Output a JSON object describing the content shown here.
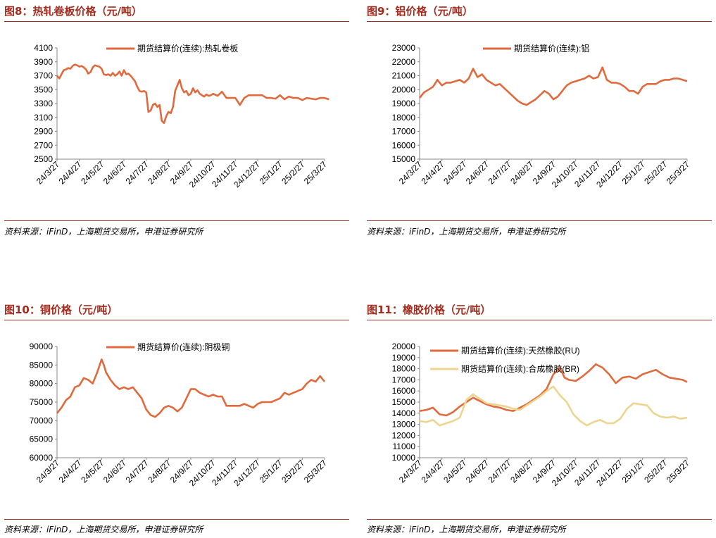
{
  "colors": {
    "title": "#a32b1d",
    "rule": "#a32b1d",
    "series_primary": "#e06a3d",
    "series_secondary": "#ecd58f",
    "axis": "#888888"
  },
  "chart_data": [
    {
      "panel_title": "图8：热轧卷板价格（元/吨）",
      "source": "资料来源：iFinD，上海期货交易所，申港证券研究所",
      "type": "line",
      "x_ticks": [
        "24/3/27",
        "24/4/27",
        "24/5/27",
        "24/6/27",
        "24/7/27",
        "24/8/27",
        "24/9/27",
        "24/10/27",
        "24/11/27",
        "24/12/27",
        "25/1/27",
        "25/2/27",
        "25/3/27"
      ],
      "ylim": [
        2500,
        4100
      ],
      "y_ticks": [
        4100,
        3900,
        3700,
        3500,
        3300,
        3100,
        2900,
        2700,
        2500
      ],
      "legend_position": "top-center",
      "series": [
        {
          "name": "期货结算价(连续):热轧卷板",
          "color": "#e06a3d",
          "x": [
            0,
            0.1,
            0.2,
            0.3,
            0.4,
            0.5,
            0.6,
            0.7,
            0.8,
            0.9,
            1,
            1.1,
            1.2,
            1.3,
            1.4,
            1.5,
            1.6,
            1.7,
            1.8,
            1.9,
            2,
            2.1,
            2.2,
            2.3,
            2.4,
            2.5,
            2.6,
            2.7,
            2.8,
            2.9,
            3,
            3.1,
            3.2,
            3.3,
            3.4,
            3.5,
            3.6,
            3.7,
            3.8,
            3.9,
            4,
            4.1,
            4.2,
            4.3,
            4.4,
            4.5,
            4.6,
            4.7,
            4.8,
            4.9,
            5,
            5.1,
            5.2,
            5.3,
            5.4,
            5.5,
            5.6,
            5.7,
            5.8,
            5.9,
            6,
            6.1,
            6.2,
            6.3,
            6.4,
            6.5,
            6.6,
            6.7,
            6.8,
            6.9,
            7,
            7.2,
            7.4,
            7.6,
            7.8,
            8,
            8.2,
            8.4,
            8.6,
            8.8,
            9,
            9.2,
            9.4,
            9.6,
            9.8,
            10,
            10.2,
            10.4,
            10.6,
            10.8,
            11,
            11.2,
            11.4,
            11.6,
            11.8,
            12,
            12.2
          ],
          "y": [
            3700,
            3660,
            3720,
            3780,
            3790,
            3810,
            3800,
            3840,
            3860,
            3850,
            3830,
            3840,
            3820,
            3790,
            3730,
            3750,
            3820,
            3850,
            3840,
            3830,
            3800,
            3720,
            3710,
            3720,
            3700,
            3740,
            3700,
            3720,
            3760,
            3700,
            3780,
            3720,
            3730,
            3700,
            3660,
            3620,
            3540,
            3480,
            3470,
            3480,
            3460,
            3180,
            3200,
            3280,
            3300,
            3250,
            3280,
            3050,
            3020,
            3120,
            3180,
            3160,
            3250,
            3480,
            3560,
            3640,
            3520,
            3460,
            3480,
            3420,
            3440,
            3520,
            3460,
            3490,
            3440,
            3420,
            3400,
            3430,
            3410,
            3420,
            3440,
            3410,
            3470,
            3380,
            3380,
            3380,
            3280,
            3380,
            3420,
            3420,
            3420,
            3420,
            3380,
            3380,
            3370,
            3420,
            3360,
            3400,
            3380,
            3380,
            3350,
            3380,
            3370,
            3360,
            3380,
            3380,
            3360
          ]
        }
      ]
    },
    {
      "panel_title": "图9：铝价格（元/吨）",
      "source": "资料来源：iFinD，上海期货交易所，申港证券研究所",
      "type": "line",
      "x_ticks": [
        "24/3/27",
        "24/4/27",
        "24/5/27",
        "24/6/27",
        "24/7/27",
        "24/8/27",
        "24/9/27",
        "24/10/27",
        "24/11/27",
        "24/12/27",
        "25/1/27",
        "25/2/27",
        "25/3/27"
      ],
      "ylim": [
        15000,
        23000
      ],
      "y_ticks": [
        23000,
        22000,
        21000,
        20000,
        19000,
        18000,
        17000,
        16000,
        15000
      ],
      "legend_position": "top-center",
      "series": [
        {
          "name": "期货结算价(连续):铝",
          "color": "#e06a3d",
          "x": [
            0,
            0.2,
            0.4,
            0.6,
            0.8,
            1,
            1.2,
            1.4,
            1.6,
            1.8,
            2,
            2.2,
            2.4,
            2.6,
            2.8,
            3,
            3.2,
            3.4,
            3.6,
            3.8,
            4,
            4.2,
            4.4,
            4.6,
            4.8,
            5,
            5.2,
            5.4,
            5.6,
            5.8,
            6,
            6.2,
            6.4,
            6.6,
            6.8,
            7,
            7.2,
            7.4,
            7.6,
            7.8,
            8,
            8.2,
            8.4,
            8.6,
            8.8,
            9,
            9.2,
            9.4,
            9.6,
            9.8,
            10,
            10.2,
            10.4,
            10.6,
            10.8,
            11,
            11.2,
            11.4,
            11.6,
            11.8,
            12
          ],
          "y": [
            19400,
            19800,
            20000,
            20200,
            20700,
            20300,
            20500,
            20500,
            20600,
            20700,
            20500,
            20800,
            21500,
            20900,
            21100,
            20700,
            20500,
            20300,
            20400,
            20100,
            19800,
            19500,
            19200,
            19000,
            18900,
            19100,
            19300,
            19600,
            19900,
            19700,
            19300,
            19500,
            19900,
            20300,
            20500,
            20600,
            20700,
            20800,
            21000,
            20800,
            20900,
            21600,
            20700,
            20500,
            20500,
            20400,
            20200,
            19900,
            19900,
            19700,
            20200,
            20400,
            20400,
            20400,
            20600,
            20700,
            20700,
            20800,
            20800,
            20700,
            20600
          ]
        }
      ]
    },
    {
      "panel_title": "图10：铜价格（元/吨）",
      "source": "资料来源：iFinD，上海期货交易所，申港证券研究所",
      "type": "line",
      "x_ticks": [
        "24/3/27",
        "24/4/27",
        "24/5/27",
        "24/6/27",
        "24/7/27",
        "24/8/27",
        "24/9/27",
        "24/10/27",
        "24/11/27",
        "24/12/27",
        "25/1/27",
        "25/2/27",
        "25/3/27"
      ],
      "ylim": [
        60000,
        90000
      ],
      "y_ticks": [
        90000,
        85000,
        80000,
        75000,
        70000,
        65000,
        60000
      ],
      "legend_position": "top-center",
      "series": [
        {
          "name": "期货结算价(连续):阴极铜",
          "color": "#e06a3d",
          "x": [
            0,
            0.2,
            0.4,
            0.6,
            0.8,
            1,
            1.2,
            1.4,
            1.6,
            1.8,
            2,
            2.1,
            2.2,
            2.3,
            2.4,
            2.6,
            2.8,
            3,
            3.2,
            3.4,
            3.6,
            3.8,
            4,
            4.2,
            4.4,
            4.6,
            4.8,
            5,
            5.2,
            5.4,
            5.6,
            5.8,
            6,
            6.2,
            6.4,
            6.6,
            6.8,
            7,
            7.2,
            7.4,
            7.6,
            7.8,
            8,
            8.2,
            8.4,
            8.6,
            8.8,
            9,
            9.2,
            9.4,
            9.6,
            9.8,
            10,
            10.2,
            10.4,
            10.6,
            10.8,
            11,
            11.2,
            11.4,
            11.6,
            11.8,
            12
          ],
          "y": [
            72000,
            73500,
            75500,
            76500,
            79000,
            79500,
            81500,
            81000,
            80000,
            83000,
            86500,
            85000,
            83000,
            82000,
            81000,
            79500,
            78500,
            79000,
            78500,
            79000,
            77500,
            76000,
            73000,
            71500,
            71000,
            72000,
            73500,
            74000,
            73500,
            72500,
            73500,
            76000,
            78500,
            78500,
            77500,
            77000,
            76500,
            77000,
            76500,
            76500,
            74000,
            74000,
            74000,
            74000,
            74500,
            74000,
            73500,
            74500,
            75000,
            75000,
            75000,
            75500,
            76000,
            77500,
            77000,
            77500,
            78000,
            78500,
            80000,
            81000,
            80500,
            82000,
            80500
          ]
        }
      ]
    },
    {
      "panel_title": "图11：橡胶价格（元/吨）",
      "source": "资料来源：iFinD，上海期货交易所，申港证券研究所",
      "type": "line",
      "x_ticks": [
        "24/3/27",
        "24/4/27",
        "24/5/27",
        "24/6/27",
        "24/7/27",
        "24/8/27",
        "24/9/27",
        "24/10/27",
        "24/11/27",
        "24/12/27",
        "25/1/27",
        "25/2/27",
        "25/3/27"
      ],
      "ylim": [
        10000,
        20000
      ],
      "y_ticks": [
        20000,
        19000,
        18000,
        17000,
        16000,
        15000,
        14000,
        13000,
        12000,
        11000,
        10000
      ],
      "legend_position": "top-left",
      "series": [
        {
          "name": "期货结算价(连续):天然橡胶(RU)",
          "color": "#e06a3d",
          "x": [
            0,
            0.3,
            0.6,
            0.9,
            1.2,
            1.5,
            1.8,
            2.1,
            2.4,
            2.7,
            3,
            3.3,
            3.6,
            3.9,
            4.2,
            4.5,
            4.8,
            5.1,
            5.4,
            5.7,
            6,
            6.3,
            6.5,
            6.7,
            7,
            7.3,
            7.6,
            7.9,
            8.2,
            8.5,
            8.8,
            9.1,
            9.4,
            9.7,
            10,
            10.3,
            10.6,
            10.9,
            11.2,
            11.5,
            11.8,
            12
          ],
          "y": [
            14200,
            14300,
            14500,
            13900,
            13800,
            14100,
            14600,
            15000,
            15400,
            15100,
            14800,
            14600,
            14500,
            14300,
            14200,
            14500,
            14800,
            15200,
            15600,
            16200,
            17500,
            18100,
            17200,
            17000,
            16900,
            17300,
            17800,
            18400,
            18100,
            17500,
            16700,
            17200,
            17300,
            17100,
            17500,
            17700,
            17900,
            17500,
            17200,
            17100,
            17000,
            16800
          ]
        },
        {
          "name": "期货结算价(连续):合成橡胶(BR)",
          "color": "#ecd58f",
          "x": [
            0,
            0.3,
            0.6,
            0.9,
            1.2,
            1.5,
            1.8,
            2.1,
            2.4,
            2.7,
            3,
            3.3,
            3.6,
            3.9,
            4.2,
            4.5,
            4.8,
            5.1,
            5.4,
            5.7,
            6,
            6.3,
            6.6,
            6.9,
            7.2,
            7.5,
            7.8,
            8.1,
            8.4,
            8.7,
            9,
            9.3,
            9.6,
            9.9,
            10.2,
            10.5,
            10.8,
            11.1,
            11.4,
            11.7,
            12
          ],
          "y": [
            13300,
            13200,
            13400,
            12900,
            13100,
            13300,
            13600,
            15200,
            15700,
            15300,
            14900,
            14800,
            14700,
            14600,
            14400,
            14300,
            14700,
            15100,
            15500,
            16000,
            16400,
            15600,
            15000,
            13900,
            13300,
            12900,
            13200,
            13400,
            13100,
            13100,
            13500,
            14400,
            14900,
            14800,
            14700,
            14000,
            13700,
            13600,
            13700,
            13500,
            13600
          ]
        }
      ]
    }
  ]
}
